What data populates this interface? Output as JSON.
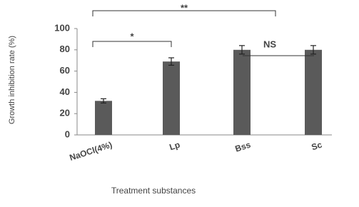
{
  "chart_data": {
    "type": "bar",
    "y_label": "Growth inhibition rate (%)",
    "x_label": "Treatment substances",
    "categories": [
      "NaOCl(4%)",
      "Lp",
      "Bss",
      "Sc"
    ],
    "values": [
      32,
      69,
      80,
      80
    ],
    "errors": [
      2,
      3.5,
      4,
      4
    ],
    "color": "#5a5a5a",
    "ylim": [
      0,
      100
    ],
    "yticks": [
      0,
      20,
      40,
      60,
      80,
      100
    ],
    "annotations": [
      "**",
      "*",
      "NS"
    ]
  }
}
